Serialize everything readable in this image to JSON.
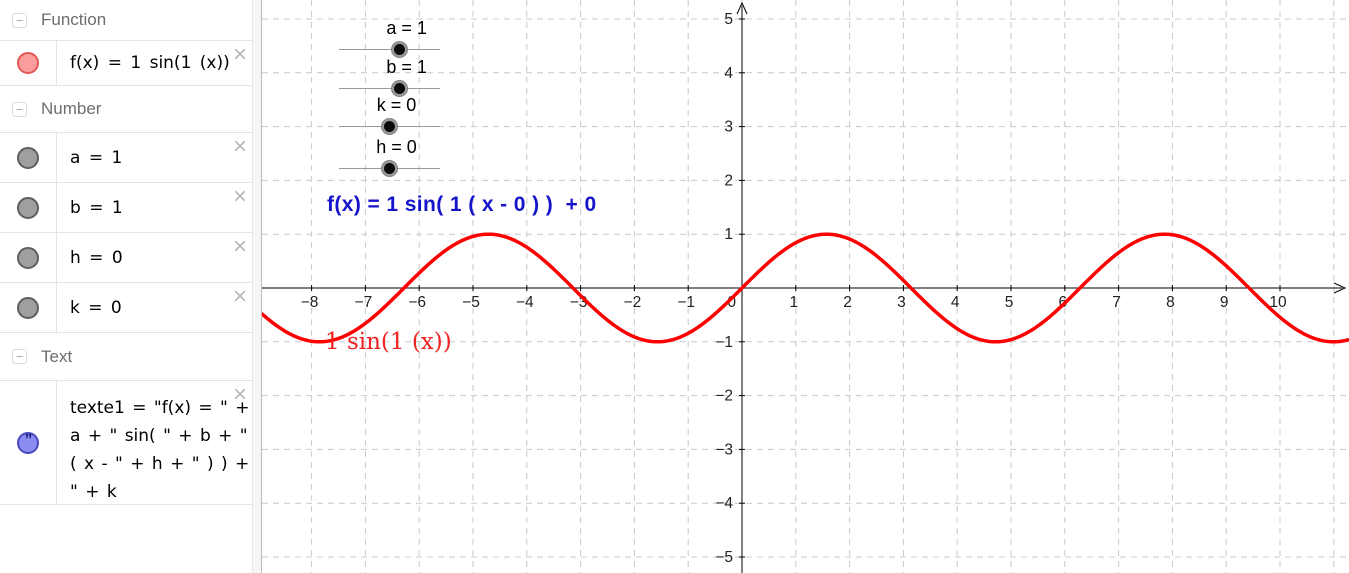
{
  "icons": {
    "close": "×",
    "minus": "−",
    "quote": "”"
  },
  "sidebar": {
    "sections": {
      "function": "Function",
      "number": "Number",
      "text": "Text"
    },
    "function_row": {
      "expression": "f(x) = 1 sin(1 (x))"
    },
    "number_rows": [
      {
        "text": "a = 1"
      },
      {
        "text": "b = 1"
      },
      {
        "text": "h = 0"
      },
      {
        "text": "k = 0"
      }
    ],
    "text_row": {
      "lines": [
        "texte1 = \"f(x) = \" +",
        "a + \" sin( \" + b + \"",
        "( x - \" + h + \" ) ) +",
        "\" + k"
      ]
    }
  },
  "graphics": {
    "sliders": [
      {
        "name": "a",
        "label": "a = 1",
        "value": 1
      },
      {
        "name": "b",
        "label": "b = 1",
        "value": 1
      },
      {
        "name": "k",
        "label": "k = 0",
        "value": 0
      },
      {
        "name": "h",
        "label": "h = 0",
        "value": 0
      }
    ],
    "formula_text": "f(x) = 1 sin( 1 ( x - 0 ) )  + 0",
    "curve_label": "1 sin(1 (x))",
    "colors": {
      "curve": "#ff0000",
      "formula_text": "#1414cb",
      "curve_label": "#f02222",
      "grid": "#c9c9c9",
      "axis": "#000000"
    }
  },
  "chart_data": {
    "type": "line",
    "title": "",
    "xlabel": "",
    "ylabel": "",
    "expression": "f(x) = a sin( b ( x - h ) ) + k",
    "parameters": {
      "a": 1,
      "b": 1,
      "h": 0,
      "k": 0
    },
    "resulting_function": "f(x) = sin(x)",
    "x_visible_range": [
      -8.92,
      11.28
    ],
    "y_visible_range": [
      -5.3,
      5.3
    ],
    "x_ticks": [
      -8,
      -7,
      -6,
      -5,
      -4,
      -3,
      -2,
      -1,
      0,
      1,
      2,
      3,
      4,
      5,
      6,
      7,
      8,
      9,
      10
    ],
    "y_ticks": [
      -5,
      -4,
      -3,
      -2,
      -1,
      0,
      1,
      2,
      3,
      4,
      5
    ],
    "grid": "dashed",
    "legend": "none",
    "key_points": [
      {
        "x": -6.283,
        "y": 0
      },
      {
        "x": -4.712,
        "y": 1
      },
      {
        "x": -3.142,
        "y": 0
      },
      {
        "x": -1.571,
        "y": -1
      },
      {
        "x": 0,
        "y": 0
      },
      {
        "x": 1.571,
        "y": 1
      },
      {
        "x": 3.142,
        "y": 0
      },
      {
        "x": 4.712,
        "y": -1
      },
      {
        "x": 6.283,
        "y": 0
      },
      {
        "x": 7.854,
        "y": 1
      },
      {
        "x": 9.425,
        "y": 0
      },
      {
        "x": 10.996,
        "y": -1
      }
    ]
  }
}
